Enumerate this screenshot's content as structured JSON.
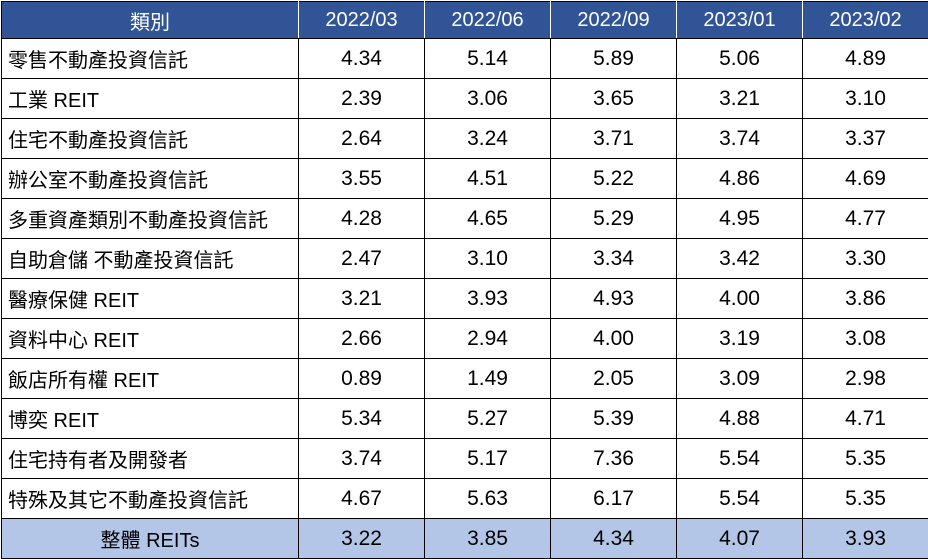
{
  "colors": {
    "header_background": "#305496",
    "header_text": "#ffffff",
    "footer_background": "#b4c6e7",
    "body_background": "#ffffff",
    "grid_border": "#000000",
    "body_text": "#000000"
  },
  "chart_data": {
    "type": "table",
    "title": "",
    "columns": [
      "類別",
      "2022/03",
      "2022/06",
      "2022/09",
      "2023/01",
      "2023/02"
    ],
    "rows": [
      {
        "label": "零售不動產投資信託",
        "values": [
          "4.34",
          "5.14",
          "5.89",
          "5.06",
          "4.89"
        ]
      },
      {
        "label": "工業 REIT",
        "values": [
          "2.39",
          "3.06",
          "3.65",
          "3.21",
          "3.10"
        ]
      },
      {
        "label": "住宅不動產投資信託",
        "values": [
          "2.64",
          "3.24",
          "3.71",
          "3.74",
          "3.37"
        ]
      },
      {
        "label": "辦公室不動產投資信託",
        "values": [
          "3.55",
          "4.51",
          "5.22",
          "4.86",
          "4.69"
        ]
      },
      {
        "label": "多重資產類別不動產投資信託",
        "values": [
          "4.28",
          "4.65",
          "5.29",
          "4.95",
          "4.77"
        ]
      },
      {
        "label": "自助倉儲 不動產投資信託",
        "values": [
          "2.47",
          "3.10",
          "3.34",
          "3.42",
          "3.30"
        ]
      },
      {
        "label": "醫療保健 REIT",
        "values": [
          "3.21",
          "3.93",
          "4.93",
          "4.00",
          "3.86"
        ]
      },
      {
        "label": "資料中心 REIT",
        "values": [
          "2.66",
          "2.94",
          "4.00",
          "3.19",
          "3.08"
        ]
      },
      {
        "label": "飯店所有權 REIT",
        "values": [
          "0.89",
          "1.49",
          "2.05",
          "3.09",
          "2.98"
        ]
      },
      {
        "label": "博奕 REIT",
        "values": [
          "5.34",
          "5.27",
          "5.39",
          "4.88",
          "4.71"
        ]
      },
      {
        "label": "住宅持有者及開發者",
        "values": [
          "3.74",
          "5.17",
          "7.36",
          "5.54",
          "5.35"
        ]
      },
      {
        "label": "特殊及其它不動產投資信託",
        "values": [
          "4.67",
          "5.63",
          "6.17",
          "5.54",
          "5.35"
        ]
      }
    ],
    "footer": {
      "label": "整體 REITs",
      "values": [
        "3.22",
        "3.85",
        "4.34",
        "4.07",
        "3.93"
      ]
    }
  }
}
